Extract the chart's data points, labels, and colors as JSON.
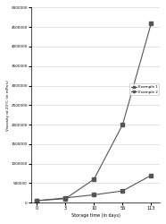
{
  "x": [
    0,
    3,
    10,
    56,
    113
  ],
  "example1": [
    50000,
    100000,
    600000,
    2000000,
    4600000
  ],
  "example2": [
    50000,
    120000,
    200000,
    300000,
    700000
  ],
  "xlabel": "Storage time (in days)",
  "ylabel": "Viscosity at 23°C (in mPa·s)",
  "ylim": [
    0,
    5000000
  ],
  "ytick_vals": [
    0,
    500000,
    1000000,
    1500000,
    2000000,
    2500000,
    3000000,
    3500000,
    4000000,
    4500000,
    5000000
  ],
  "ytick_labels": [
    "0",
    "500000",
    "1000000",
    "1500000",
    "2000000",
    "2500000",
    "3000000",
    "3500000",
    "4000000",
    "4500000",
    "5000000"
  ],
  "xtick_labels": [
    "0",
    "3",
    "10",
    "56",
    "113"
  ],
  "legend_labels": [
    "Example 1",
    "Example 2"
  ],
  "line_color": "#555555",
  "marker": "s",
  "bg_color": "#ffffff",
  "grid_color": "#d0d0d0"
}
